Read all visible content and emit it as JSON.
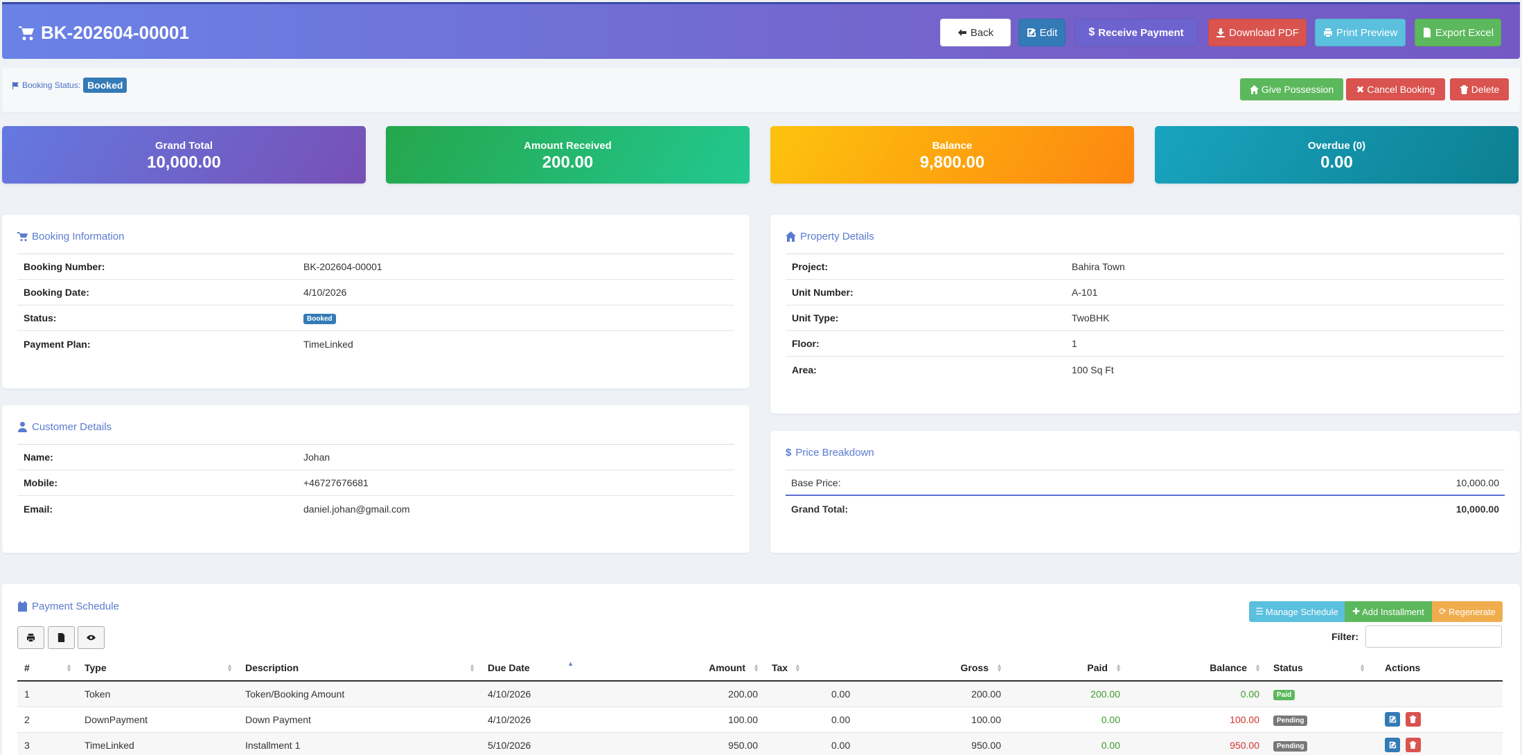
{
  "header": {
    "title": "BK-202604-00001",
    "buttons": {
      "back": "Back",
      "edit": "Edit",
      "receive": "Receive Payment",
      "pdf": "Download PDF",
      "print": "Print Preview",
      "excel": "Export Excel"
    }
  },
  "status_bar": {
    "label": "Booking Status:",
    "status": "Booked",
    "buttons": {
      "possession": "Give Possession",
      "cancel": "Cancel Booking",
      "delete": "Delete"
    }
  },
  "summary": [
    {
      "title": "Grand Total",
      "value": "10,000.00"
    },
    {
      "title": "Amount Received",
      "value": "200.00"
    },
    {
      "title": "Balance",
      "value": "9,800.00"
    },
    {
      "title": "Overdue (0)",
      "value": "0.00"
    }
  ],
  "booking_info": {
    "title": "Booking Information",
    "rows": [
      {
        "label": "Booking Number:",
        "value": "BK-202604-00001"
      },
      {
        "label": "Booking Date:",
        "value": "4/10/2026"
      },
      {
        "label": "Status:",
        "value": "Booked"
      },
      {
        "label": "Payment Plan:",
        "value": "TimeLinked"
      }
    ]
  },
  "property": {
    "title": "Property Details",
    "rows": [
      {
        "label": "Project:",
        "value": "Bahira Town"
      },
      {
        "label": "Unit Number:",
        "value": "A-101"
      },
      {
        "label": "Unit Type:",
        "value": "TwoBHK"
      },
      {
        "label": "Floor:",
        "value": "1"
      },
      {
        "label": "Area:",
        "value": "100 Sq Ft"
      }
    ]
  },
  "customer": {
    "title": "Customer Details",
    "rows": [
      {
        "label": "Name:",
        "value": "Johan"
      },
      {
        "label": "Mobile:",
        "value": "+46727676681"
      },
      {
        "label": "Email:",
        "value": "daniel.johan@gmail.com"
      }
    ]
  },
  "price": {
    "title": "Price Breakdown",
    "base_label": "Base Price:",
    "base_value": "10,000.00",
    "total_label": "Grand Total:",
    "total_value": "10,000.00"
  },
  "schedule": {
    "title": "Payment Schedule",
    "buttons": {
      "manage": "Manage Schedule",
      "add": "Add Installment",
      "regenerate": "Regenerate"
    },
    "filter_label": "Filter:",
    "columns": [
      "#",
      "Type",
      "Description",
      "Due Date",
      "Amount",
      "Tax",
      "Gross",
      "Paid",
      "Balance",
      "Status",
      "Actions"
    ],
    "rows": [
      {
        "no": "1",
        "type": "Token",
        "desc": "Token/Booking Amount",
        "due": "4/10/2026",
        "amount": "200.00",
        "tax": "0.00",
        "gross": "200.00",
        "paid": "200.00",
        "balance": "0.00",
        "status": "Paid"
      },
      {
        "no": "2",
        "type": "DownPayment",
        "desc": "Down Payment",
        "due": "4/10/2026",
        "amount": "100.00",
        "tax": "0.00",
        "gross": "100.00",
        "paid": "0.00",
        "balance": "100.00",
        "status": "Pending"
      },
      {
        "no": "3",
        "type": "TimeLinked",
        "desc": "Installment 1",
        "due": "5/10/2026",
        "amount": "950.00",
        "tax": "0.00",
        "gross": "950.00",
        "paid": "0.00",
        "balance": "950.00",
        "status": "Pending"
      }
    ]
  },
  "colors": {
    "primary": "#337ab7",
    "success": "#5cb85c",
    "danger": "#d9534f",
    "info": "#5bc0de",
    "warning": "#f0ad4e"
  }
}
